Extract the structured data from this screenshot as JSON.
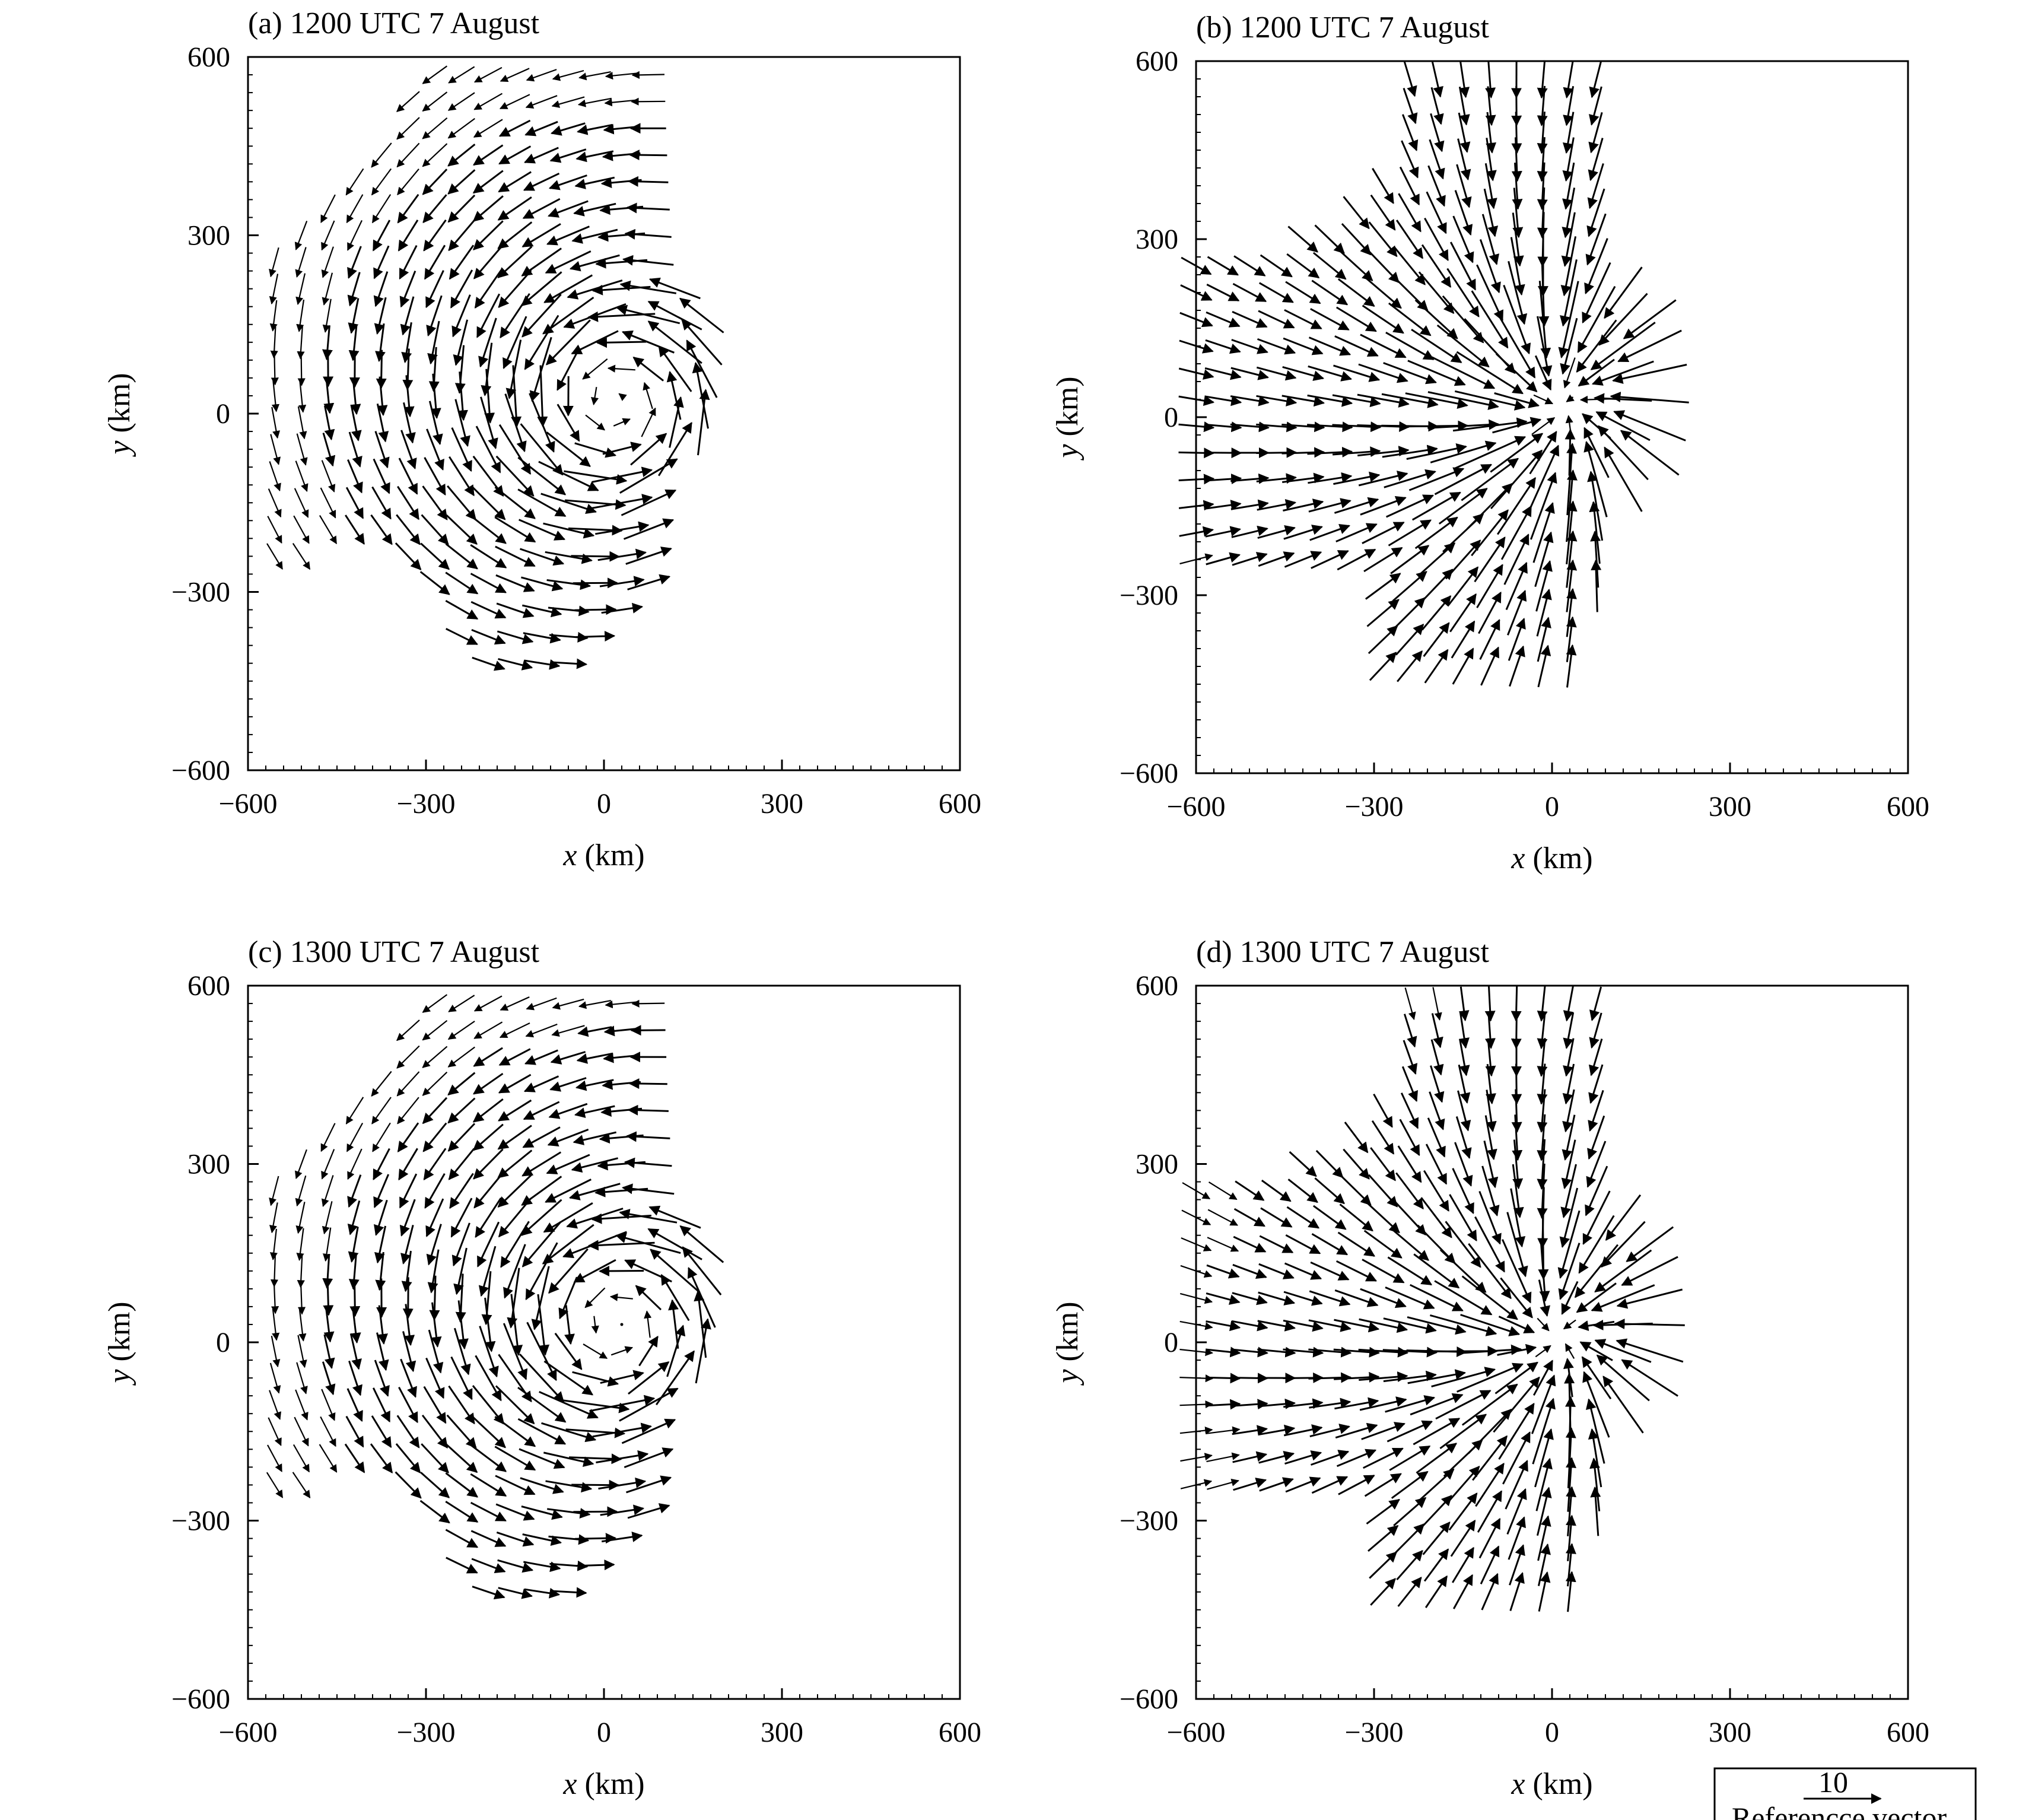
{
  "figure": {
    "axis_label_x_var": "x",
    "axis_label_x_unit": " (km)",
    "axis_label_y_var": "y",
    "axis_label_y_unit": " (km)",
    "reference_vector": {
      "value": "10",
      "label": "Referencce vector"
    }
  },
  "chart_data": [
    {
      "id": "a",
      "type": "vector-field",
      "title": "(a) 1200 UTC 7 August",
      "xlabel": "x (km)",
      "ylabel": "y (km)",
      "xlim": [
        -600,
        600
      ],
      "ylim": [
        -600,
        600
      ],
      "xticks": [
        -600,
        -300,
        0,
        300,
        600
      ],
      "yticks": [
        -600,
        -300,
        0,
        300,
        600
      ],
      "grid": false,
      "pattern": "cyclonic",
      "center": [
        20,
        20
      ],
      "max_speed": 12
    },
    {
      "id": "b",
      "type": "vector-field",
      "title": "(b) 1200 UTC 7 August",
      "xlabel": "x (km)",
      "ylabel": "y (km)",
      "xlim": [
        -600,
        600
      ],
      "ylim": [
        -600,
        600
      ],
      "xticks": [
        -600,
        -300,
        0,
        300,
        600
      ],
      "yticks": [
        -600,
        -300,
        0,
        300,
        600
      ],
      "grid": false,
      "pattern": "convergent",
      "center": [
        20,
        20
      ],
      "max_speed": 14
    },
    {
      "id": "c",
      "type": "vector-field",
      "title": "(c) 1300 UTC 7 August",
      "xlabel": "x (km)",
      "ylabel": "y (km)",
      "xlim": [
        -600,
        600
      ],
      "ylim": [
        -600,
        600
      ],
      "xticks": [
        -600,
        -300,
        0,
        300,
        600
      ],
      "yticks": [
        -600,
        -300,
        0,
        300,
        600
      ],
      "grid": false,
      "pattern": "cyclonic",
      "center": [
        20,
        30
      ],
      "max_speed": 12
    },
    {
      "id": "d",
      "type": "vector-field",
      "title": "(d) 1300 UTC 7 August",
      "xlabel": "x (km)",
      "ylabel": "y (km)",
      "xlim": [
        -600,
        600
      ],
      "ylim": [
        -600,
        600
      ],
      "xticks": [
        -600,
        -300,
        0,
        300,
        600
      ],
      "yticks": [
        -600,
        -300,
        0,
        300,
        600
      ],
      "grid": false,
      "pattern": "convergent",
      "center": [
        10,
        10
      ],
      "max_speed": 13
    }
  ]
}
